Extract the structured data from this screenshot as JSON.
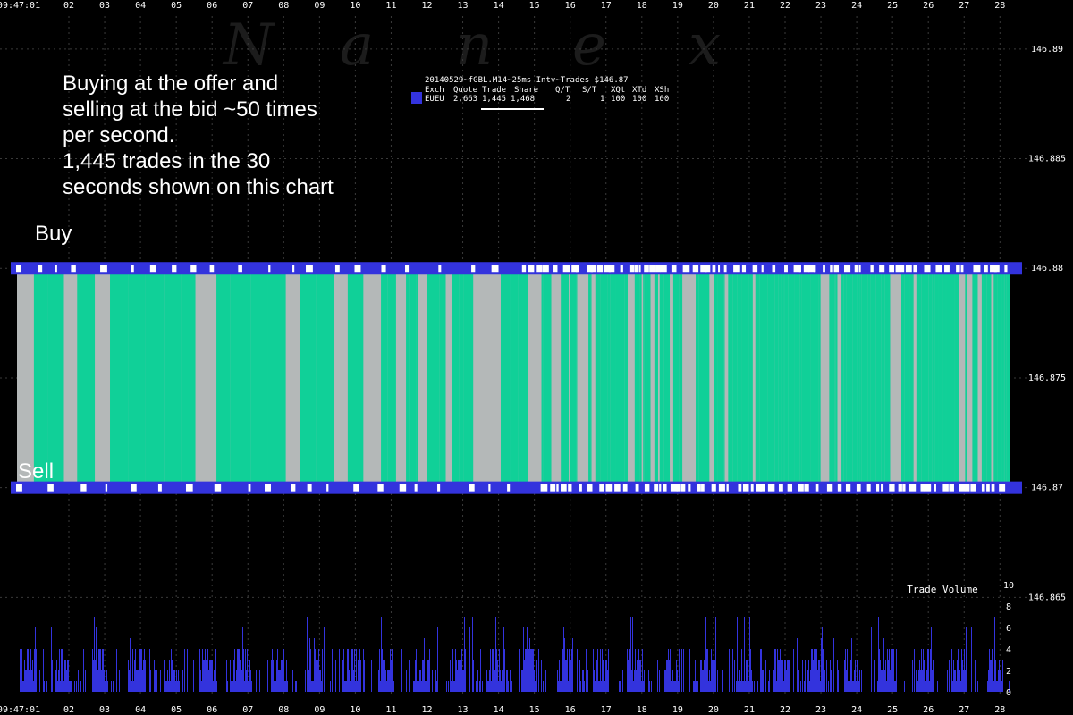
{
  "watermark": [
    "N",
    "a",
    "n",
    "e",
    "x"
  ],
  "annotations": {
    "main": [
      "Buying at the offer and",
      "selling at the bid ~50 times",
      "per second.",
      "1,445 trades in the 30",
      "seconds shown on this chart"
    ],
    "buy": "Buy",
    "sell": "Sell"
  },
  "legend": {
    "title": "20140529~fGBL.M14~25ms Intv~Trades $146.87",
    "headers": [
      "Exch",
      "Quote",
      "Trade",
      "Share",
      "Q/T",
      "S/T",
      "XQt",
      "XTd",
      "XSh"
    ],
    "row": [
      "EUEU",
      "2,663",
      "1,445",
      "1,468",
      "2",
      "1",
      "100",
      "100",
      "100"
    ],
    "swatch_color": "#3333dd"
  },
  "colors": {
    "trade_green": "#10d098",
    "trade_gray": "#b4b8b8",
    "quote_blue": "#3333dd",
    "volume_blue": "#3333dd",
    "grid": "#3a3a3a",
    "text": "#ffffff"
  },
  "chart_data": [
    {
      "type": "area",
      "title": "",
      "ylabel": "",
      "x_ticks": [
        "09:47:01",
        "02",
        "03",
        "04",
        "05",
        "06",
        "07",
        "08",
        "09",
        "10",
        "11",
        "12",
        "13",
        "14",
        "15",
        "16",
        "17",
        "18",
        "19",
        "20",
        "21",
        "22",
        "23",
        "24",
        "25",
        "26",
        "27",
        "28"
      ],
      "y_ticks": [
        "146.89",
        "146.885",
        "146.88",
        "146.875",
        "146.87",
        "146.865"
      ],
      "ylim": [
        146.862,
        146.8915
      ],
      "grid": true,
      "offer_price": 146.88,
      "bid_price": 146.87,
      "series": [
        {
          "name": "Buy",
          "price": 146.88
        },
        {
          "name": "Sell",
          "price": 146.87
        }
      ]
    },
    {
      "type": "bar",
      "title": "Trade Volume",
      "y_ticks": [
        "10",
        "8",
        "6",
        "4",
        "2",
        "0"
      ],
      "ylim": [
        0,
        10
      ],
      "approx_max": 8
    }
  ]
}
